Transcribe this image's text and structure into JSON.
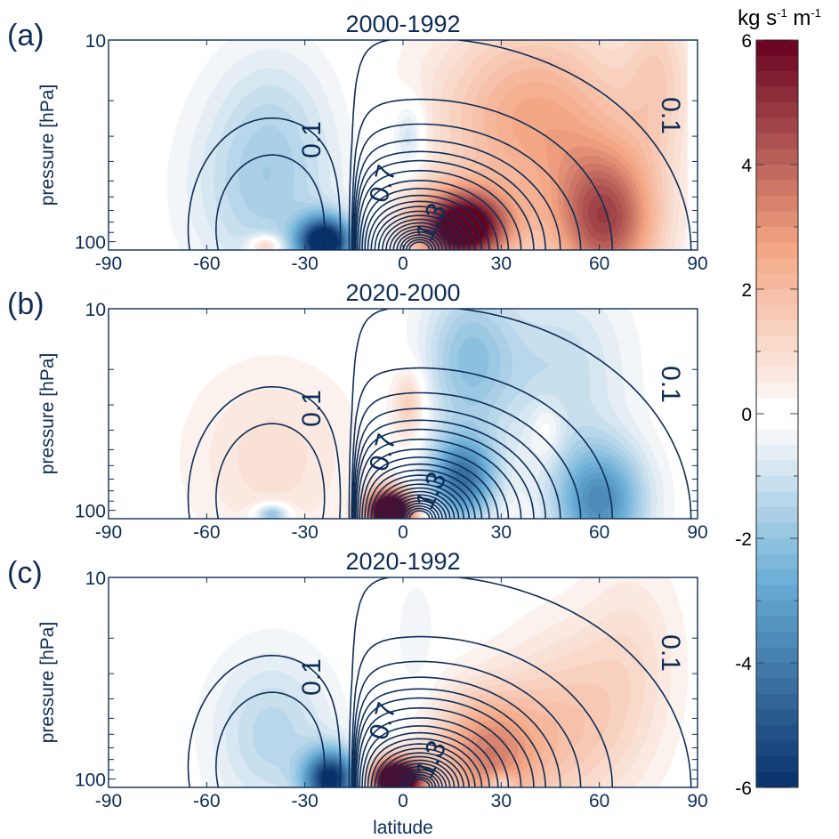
{
  "chart_data": {
    "type": "heatmap",
    "colorbar": {
      "title": "kg s⁻¹ m⁻¹",
      "title_base": "kg s",
      "title_exp1": "-1",
      "title_mid": " m",
      "title_exp2": "-1",
      "range": [
        -6,
        6
      ],
      "ticks": [
        6,
        4,
        2,
        0,
        -2,
        -4,
        -6
      ],
      "tick_labels": [
        "6",
        "4",
        "2",
        "0",
        "-2",
        "-4",
        "-6"
      ],
      "minor_ticks": [
        5,
        3,
        1,
        -1,
        -3,
        -5
      ],
      "levels_per_unit": 4,
      "white_band": [
        -0.25,
        0.25
      ],
      "colormap": "RdBu_r",
      "colors": {
        "neg_max": "#08306b",
        "neg_mid": "#6aaed6",
        "neg_low": "#eef3f7",
        "zero": "#ffffff",
        "pos_low": "#fbeee8",
        "pos_mid": "#f4a582",
        "pos_max": "#67001f"
      }
    },
    "xlabel": "latitude",
    "ylabel": "pressure [hPa]",
    "xlim": [
      -90,
      90
    ],
    "ylim_hPa": [
      110,
      10
    ],
    "yscale": "log",
    "xticks": [
      -90,
      -60,
      -30,
      0,
      30,
      60,
      90
    ],
    "xtick_labels": [
      "-90",
      "-60",
      "-30",
      "0",
      "30",
      "60",
      "90"
    ],
    "yticks_major": [
      10,
      100
    ],
    "ytick_labels": [
      "10",
      "100"
    ],
    "yticks_minor": [
      20,
      30,
      40,
      50,
      60,
      70,
      80,
      90
    ],
    "contour_style": {
      "color": "#0d2d57",
      "positive": "solid",
      "negative": "dashed"
    },
    "contour_labels": [
      "0.1",
      "0.7",
      "1.3"
    ],
    "panels": [
      {
        "label": "(a)",
        "title": "2000-1992",
        "description": "Positive anomaly north of equator, negative in southern subtropics",
        "anomaly_blobs": [
          {
            "lat": 18,
            "p": 85,
            "amp": 7.0,
            "wlat": 14,
            "wlogp": 0.18
          },
          {
            "lat": 62,
            "p": 80,
            "amp": 4.2,
            "wlat": 16,
            "wlogp": 0.35
          },
          {
            "lat": 40,
            "p": 25,
            "amp": 2.6,
            "wlat": 30,
            "wlogp": 0.5
          },
          {
            "lat": 78,
            "p": 15,
            "amp": 1.2,
            "wlat": 10,
            "wlogp": 0.4
          },
          {
            "lat": -24,
            "p": 100,
            "amp": -7.0,
            "wlat": 8,
            "wlogp": 0.12
          },
          {
            "lat": -42,
            "p": 55,
            "amp": -1.6,
            "wlat": 22,
            "wlogp": 0.45
          },
          {
            "lat": -40,
            "p": 20,
            "amp": -0.6,
            "wlat": 18,
            "wlogp": 0.35
          },
          {
            "lat": 2,
            "p": 30,
            "amp": -1.3,
            "wlat": 5,
            "wlogp": 0.18
          },
          {
            "lat": -42,
            "p": 105,
            "amp": 2.2,
            "wlat": 5,
            "wlogp": 0.05
          }
        ]
      },
      {
        "label": "(b)",
        "title": "2020-2000",
        "description": "Negative anomaly across NH, strong positive near equator at low altitude",
        "anomaly_blobs": [
          {
            "lat": -4,
            "p": 100,
            "amp": 9.0,
            "wlat": 7,
            "wlogp": 0.1
          },
          {
            "lat": 2,
            "p": 30,
            "amp": 1.6,
            "wlat": 5,
            "wlogp": 0.18
          },
          {
            "lat": -40,
            "p": 55,
            "amp": 0.9,
            "wlat": 25,
            "wlogp": 0.45
          },
          {
            "lat": 44,
            "p": 40,
            "amp": 0.8,
            "wlat": 5,
            "wlogp": 0.15
          },
          {
            "lat": 18,
            "p": 70,
            "amp": -4.2,
            "wlat": 10,
            "wlogp": 0.2
          },
          {
            "lat": 60,
            "p": 90,
            "amp": -3.6,
            "wlat": 14,
            "wlogp": 0.28
          },
          {
            "lat": 20,
            "p": 18,
            "amp": -2.0,
            "wlat": 14,
            "wlogp": 0.4
          },
          {
            "lat": 48,
            "p": 20,
            "amp": -1.2,
            "wlat": 20,
            "wlogp": 0.45
          },
          {
            "lat": -40,
            "p": 105,
            "amp": -2.6,
            "wlat": 5,
            "wlogp": 0.05
          }
        ]
      },
      {
        "label": "(c)",
        "title": "2020-1992",
        "description": "Positive anomaly in NH lower stratosphere, negative in southern subtropics",
        "anomaly_blobs": [
          {
            "lat": -2,
            "p": 100,
            "amp": 9.0,
            "wlat": 8,
            "wlogp": 0.1
          },
          {
            "lat": 25,
            "p": 75,
            "amp": 3.2,
            "wlat": 16,
            "wlogp": 0.3
          },
          {
            "lat": 50,
            "p": 55,
            "amp": 1.6,
            "wlat": 20,
            "wlogp": 0.45
          },
          {
            "lat": 70,
            "p": 25,
            "amp": 0.8,
            "wlat": 15,
            "wlogp": 0.5
          },
          {
            "lat": -22,
            "p": 100,
            "amp": -6.0,
            "wlat": 8,
            "wlogp": 0.14
          },
          {
            "lat": -40,
            "p": 60,
            "amp": -1.4,
            "wlat": 18,
            "wlogp": 0.4
          },
          {
            "lat": 4,
            "p": 20,
            "amp": -0.5,
            "wlat": 6,
            "wlogp": 0.3
          },
          {
            "lat": 30,
            "p": 105,
            "amp": -1.5,
            "wlat": 4,
            "wlogp": 0.05
          }
        ]
      }
    ]
  }
}
